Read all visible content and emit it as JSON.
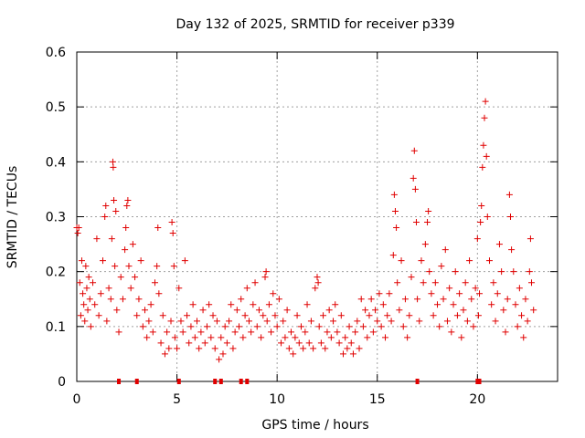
{
  "chart_data": {
    "type": "scatter",
    "title": "Day 132 of 2025, SRMTID for receiver p339",
    "xlabel": "GPS time / hours",
    "ylabel": "SRMTID / TECUs",
    "xlim": [
      0,
      24
    ],
    "ylim": [
      0,
      0.6
    ],
    "x_ticks": [
      0,
      5,
      10,
      15,
      20
    ],
    "x_tick_labels": [
      "0",
      "5",
      "10",
      "15",
      "20"
    ],
    "y_ticks": [
      0,
      0.1,
      0.2,
      0.3,
      0.4,
      0.5,
      0.6
    ],
    "y_tick_labels": [
      "0",
      "0.1",
      "0.2",
      "0.3",
      "0.4",
      "0.5",
      "0.6"
    ],
    "grid": true,
    "marker": "plus",
    "series_color": "#e00000",
    "series": [
      {
        "name": "SRMTID",
        "points": [
          [
            0.0,
            0.28
          ],
          [
            0.05,
            0.27
          ],
          [
            0.1,
            0.28
          ],
          [
            0.15,
            0.18
          ],
          [
            0.2,
            0.12
          ],
          [
            0.25,
            0.22
          ],
          [
            0.3,
            0.16
          ],
          [
            0.35,
            0.14
          ],
          [
            0.4,
            0.11
          ],
          [
            0.45,
            0.21
          ],
          [
            0.5,
            0.17
          ],
          [
            0.55,
            0.13
          ],
          [
            0.6,
            0.19
          ],
          [
            0.65,
            0.15
          ],
          [
            0.7,
            0.1
          ],
          [
            0.8,
            0.18
          ],
          [
            0.9,
            0.14
          ],
          [
            1.0,
            0.26
          ],
          [
            1.1,
            0.12
          ],
          [
            1.2,
            0.16
          ],
          [
            1.3,
            0.22
          ],
          [
            1.4,
            0.3
          ],
          [
            1.45,
            0.32
          ],
          [
            1.5,
            0.11
          ],
          [
            1.6,
            0.17
          ],
          [
            1.7,
            0.15
          ],
          [
            1.75,
            0.26
          ],
          [
            1.8,
            0.4
          ],
          [
            1.82,
            0.39
          ],
          [
            1.85,
            0.33
          ],
          [
            1.9,
            0.21
          ],
          [
            1.95,
            0.31
          ],
          [
            2.0,
            0.13
          ],
          [
            2.1,
            0.09
          ],
          [
            2.2,
            0.19
          ],
          [
            2.3,
            0.15
          ],
          [
            2.4,
            0.24
          ],
          [
            2.45,
            0.28
          ],
          [
            2.5,
            0.32
          ],
          [
            2.55,
            0.33
          ],
          [
            2.6,
            0.21
          ],
          [
            2.7,
            0.17
          ],
          [
            2.8,
            0.25
          ],
          [
            2.9,
            0.19
          ],
          [
            3.0,
            0.12
          ],
          [
            3.1,
            0.15
          ],
          [
            3.2,
            0.22
          ],
          [
            3.3,
            0.1
          ],
          [
            3.4,
            0.13
          ],
          [
            3.5,
            0.08
          ],
          [
            3.6,
            0.11
          ],
          [
            3.7,
            0.14
          ],
          [
            3.8,
            0.09
          ],
          [
            3.9,
            0.18
          ],
          [
            4.0,
            0.21
          ],
          [
            4.05,
            0.28
          ],
          [
            4.1,
            0.16
          ],
          [
            4.2,
            0.07
          ],
          [
            4.3,
            0.12
          ],
          [
            4.4,
            0.05
          ],
          [
            4.5,
            0.09
          ],
          [
            4.6,
            0.06
          ],
          [
            4.7,
            0.11
          ],
          [
            4.75,
            0.29
          ],
          [
            4.8,
            0.27
          ],
          [
            4.85,
            0.21
          ],
          [
            4.9,
            0.08
          ],
          [
            5.0,
            0.06
          ],
          [
            5.1,
            0.17
          ],
          [
            5.2,
            0.11
          ],
          [
            5.3,
            0.09
          ],
          [
            5.4,
            0.22
          ],
          [
            5.5,
            0.12
          ],
          [
            5.6,
            0.07
          ],
          [
            5.7,
            0.1
          ],
          [
            5.8,
            0.14
          ],
          [
            5.9,
            0.08
          ],
          [
            6.0,
            0.11
          ],
          [
            6.1,
            0.06
          ],
          [
            6.2,
            0.09
          ],
          [
            6.3,
            0.13
          ],
          [
            6.4,
            0.07
          ],
          [
            6.5,
            0.1
          ],
          [
            6.6,
            0.14
          ],
          [
            6.7,
            0.08
          ],
          [
            6.8,
            0.12
          ],
          [
            6.9,
            0.06
          ],
          [
            7.0,
            0.11
          ],
          [
            7.1,
            0.04
          ],
          [
            7.2,
            0.08
          ],
          [
            7.3,
            0.05
          ],
          [
            7.4,
            0.1
          ],
          [
            7.5,
            0.07
          ],
          [
            7.6,
            0.11
          ],
          [
            7.7,
            0.14
          ],
          [
            7.8,
            0.06
          ],
          [
            7.9,
            0.09
          ],
          [
            8.0,
            0.13
          ],
          [
            8.1,
            0.1
          ],
          [
            8.2,
            0.15
          ],
          [
            8.3,
            0.08
          ],
          [
            8.4,
            0.12
          ],
          [
            8.5,
            0.17
          ],
          [
            8.6,
            0.11
          ],
          [
            8.7,
            0.09
          ],
          [
            8.8,
            0.14
          ],
          [
            8.9,
            0.18
          ],
          [
            9.0,
            0.1
          ],
          [
            9.1,
            0.13
          ],
          [
            9.2,
            0.08
          ],
          [
            9.3,
            0.12
          ],
          [
            9.4,
            0.19
          ],
          [
            9.45,
            0.2
          ],
          [
            9.5,
            0.11
          ],
          [
            9.6,
            0.14
          ],
          [
            9.7,
            0.09
          ],
          [
            9.8,
            0.16
          ],
          [
            9.9,
            0.12
          ],
          [
            10.0,
            0.1
          ],
          [
            10.1,
            0.15
          ],
          [
            10.2,
            0.07
          ],
          [
            10.3,
            0.11
          ],
          [
            10.4,
            0.08
          ],
          [
            10.5,
            0.13
          ],
          [
            10.6,
            0.06
          ],
          [
            10.7,
            0.09
          ],
          [
            10.8,
            0.05
          ],
          [
            10.9,
            0.08
          ],
          [
            11.0,
            0.12
          ],
          [
            11.1,
            0.07
          ],
          [
            11.2,
            0.1
          ],
          [
            11.3,
            0.06
          ],
          [
            11.4,
            0.09
          ],
          [
            11.5,
            0.14
          ],
          [
            11.6,
            0.07
          ],
          [
            11.7,
            0.11
          ],
          [
            11.8,
            0.06
          ],
          [
            11.9,
            0.17
          ],
          [
            12.0,
            0.19
          ],
          [
            12.05,
            0.18
          ],
          [
            12.1,
            0.1
          ],
          [
            12.2,
            0.07
          ],
          [
            12.3,
            0.12
          ],
          [
            12.4,
            0.06
          ],
          [
            12.5,
            0.09
          ],
          [
            12.6,
            0.13
          ],
          [
            12.7,
            0.08
          ],
          [
            12.8,
            0.11
          ],
          [
            12.9,
            0.14
          ],
          [
            13.0,
            0.09
          ],
          [
            13.1,
            0.07
          ],
          [
            13.2,
            0.12
          ],
          [
            13.3,
            0.05
          ],
          [
            13.4,
            0.08
          ],
          [
            13.5,
            0.06
          ],
          [
            13.6,
            0.1
          ],
          [
            13.7,
            0.07
          ],
          [
            13.8,
            0.05
          ],
          [
            13.9,
            0.09
          ],
          [
            14.0,
            0.11
          ],
          [
            14.1,
            0.06
          ],
          [
            14.2,
            0.15
          ],
          [
            14.3,
            0.1
          ],
          [
            14.4,
            0.13
          ],
          [
            14.5,
            0.08
          ],
          [
            14.6,
            0.12
          ],
          [
            14.7,
            0.15
          ],
          [
            14.8,
            0.09
          ],
          [
            14.9,
            0.13
          ],
          [
            15.0,
            0.11
          ],
          [
            15.1,
            0.16
          ],
          [
            15.2,
            0.1
          ],
          [
            15.3,
            0.14
          ],
          [
            15.4,
            0.08
          ],
          [
            15.5,
            0.12
          ],
          [
            15.6,
            0.16
          ],
          [
            15.7,
            0.11
          ],
          [
            15.8,
            0.23
          ],
          [
            15.85,
            0.34
          ],
          [
            15.9,
            0.31
          ],
          [
            15.95,
            0.28
          ],
          [
            16.0,
            0.18
          ],
          [
            16.1,
            0.13
          ],
          [
            16.2,
            0.22
          ],
          [
            16.3,
            0.1
          ],
          [
            16.4,
            0.15
          ],
          [
            16.5,
            0.08
          ],
          [
            16.6,
            0.12
          ],
          [
            16.7,
            0.19
          ],
          [
            16.8,
            0.37
          ],
          [
            16.85,
            0.42
          ],
          [
            16.9,
            0.35
          ],
          [
            16.95,
            0.29
          ],
          [
            17.0,
            0.15
          ],
          [
            17.1,
            0.11
          ],
          [
            17.2,
            0.22
          ],
          [
            17.3,
            0.18
          ],
          [
            17.4,
            0.25
          ],
          [
            17.5,
            0.29
          ],
          [
            17.55,
            0.31
          ],
          [
            17.6,
            0.2
          ],
          [
            17.7,
            0.16
          ],
          [
            17.8,
            0.12
          ],
          [
            17.9,
            0.18
          ],
          [
            18.0,
            0.14
          ],
          [
            18.1,
            0.1
          ],
          [
            18.2,
            0.21
          ],
          [
            18.3,
            0.15
          ],
          [
            18.4,
            0.24
          ],
          [
            18.5,
            0.11
          ],
          [
            18.6,
            0.17
          ],
          [
            18.7,
            0.09
          ],
          [
            18.8,
            0.14
          ],
          [
            18.9,
            0.2
          ],
          [
            19.0,
            0.12
          ],
          [
            19.1,
            0.16
          ],
          [
            19.2,
            0.08
          ],
          [
            19.3,
            0.13
          ],
          [
            19.4,
            0.18
          ],
          [
            19.5,
            0.11
          ],
          [
            19.6,
            0.22
          ],
          [
            19.7,
            0.15
          ],
          [
            19.8,
            0.1
          ],
          [
            19.9,
            0.17
          ],
          [
            20.0,
            0.26
          ],
          [
            20.05,
            0.12
          ],
          [
            20.1,
            0.16
          ],
          [
            20.15,
            0.29
          ],
          [
            20.2,
            0.32
          ],
          [
            20.25,
            0.39
          ],
          [
            20.3,
            0.43
          ],
          [
            20.35,
            0.48
          ],
          [
            20.4,
            0.51
          ],
          [
            20.45,
            0.41
          ],
          [
            20.5,
            0.3
          ],
          [
            20.6,
            0.22
          ],
          [
            20.7,
            0.14
          ],
          [
            20.8,
            0.18
          ],
          [
            20.9,
            0.11
          ],
          [
            21.0,
            0.16
          ],
          [
            21.1,
            0.25
          ],
          [
            21.2,
            0.2
          ],
          [
            21.3,
            0.13
          ],
          [
            21.4,
            0.09
          ],
          [
            21.5,
            0.15
          ],
          [
            21.6,
            0.34
          ],
          [
            21.65,
            0.3
          ],
          [
            21.7,
            0.24
          ],
          [
            21.8,
            0.2
          ],
          [
            21.9,
            0.14
          ],
          [
            22.0,
            0.1
          ],
          [
            22.1,
            0.17
          ],
          [
            22.2,
            0.12
          ],
          [
            22.3,
            0.08
          ],
          [
            22.4,
            0.15
          ],
          [
            22.5,
            0.11
          ],
          [
            22.6,
            0.2
          ],
          [
            22.65,
            0.26
          ],
          [
            22.7,
            0.18
          ],
          [
            22.8,
            0.13
          ]
        ]
      }
    ],
    "gap_markers": [
      2.1,
      3.0,
      5.1,
      6.9,
      7.2,
      8.2,
      8.5,
      17.0,
      20.0,
      20.1
    ]
  }
}
